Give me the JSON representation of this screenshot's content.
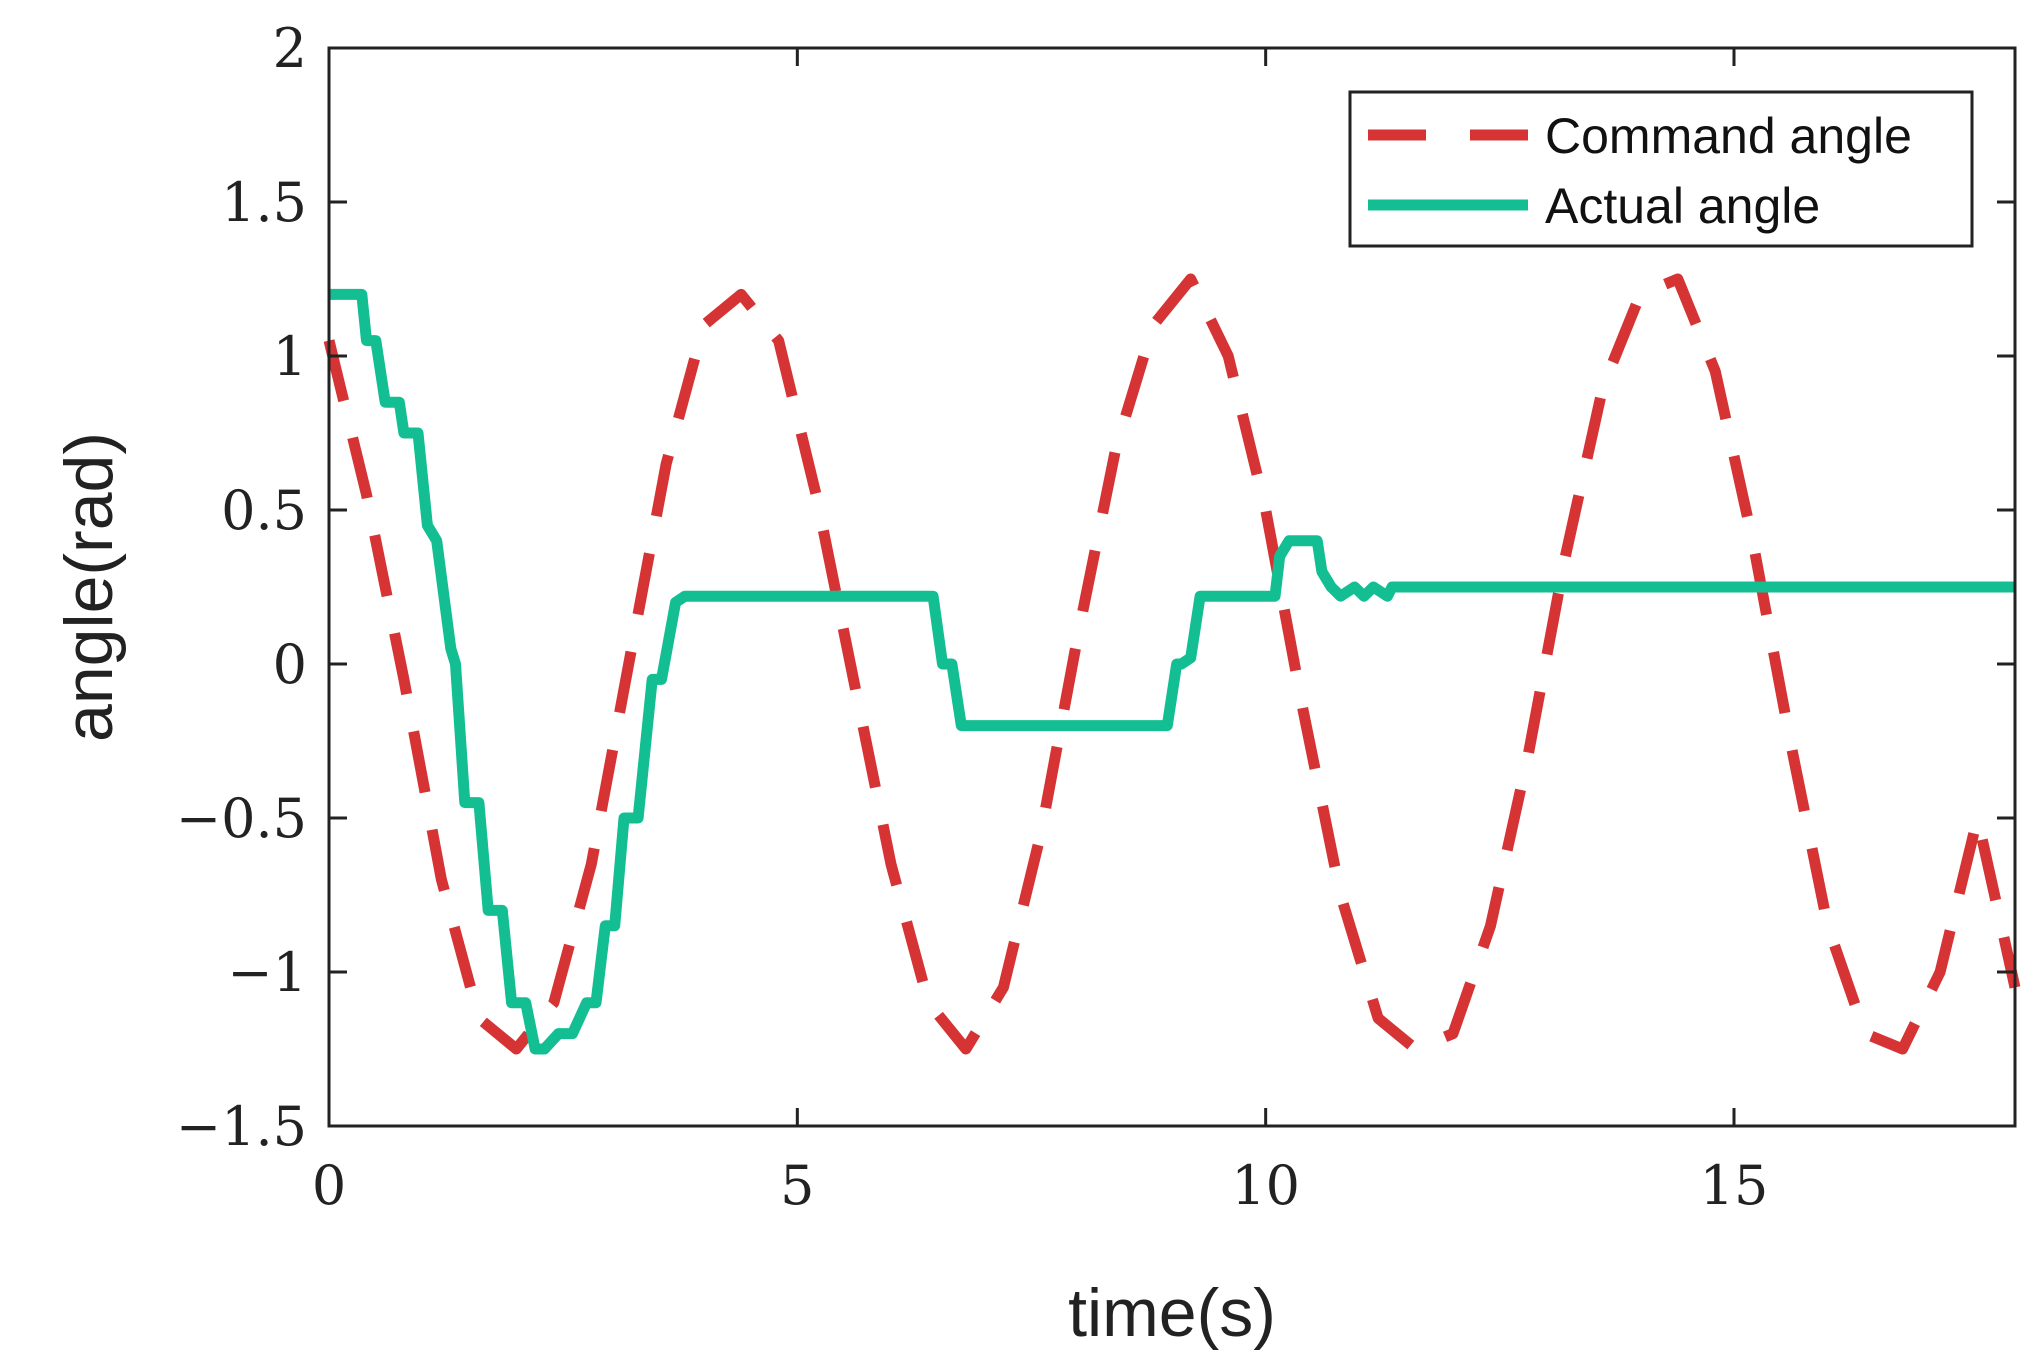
{
  "chart_data": {
    "type": "line",
    "title": "",
    "xlabel": "time(s)",
    "ylabel": "angle(rad)",
    "xlim": [
      0,
      18
    ],
    "ylim": [
      -1.5,
      2
    ],
    "xticks": [
      0,
      5,
      10,
      15
    ],
    "yticks": [
      -1.5,
      -1,
      -0.5,
      0,
      0.5,
      1,
      1.5,
      2
    ],
    "xtick_labels": [
      "0",
      "5",
      "10",
      "15"
    ],
    "ytick_labels": [
      "−1.5",
      "−1",
      "−0.5",
      "0",
      "0.5",
      "1",
      "1.5",
      "2"
    ],
    "grid": false,
    "legend_position": "top-right",
    "colors": {
      "command": "#d63434",
      "actual": "#13bf92",
      "axes": "#222222"
    },
    "series": [
      {
        "name": "Command angle",
        "style": "dashed",
        "x": [
          0,
          0.4,
          0.8,
          1.2,
          1.6,
          2.0,
          2.4,
          2.8,
          3.2,
          3.6,
          4.0,
          4.4,
          4.8,
          5.2,
          5.6,
          6.0,
          6.4,
          6.8,
          7.2,
          7.6,
          8.0,
          8.4,
          8.8,
          9.2,
          9.6,
          10.0,
          10.4,
          10.8,
          11.2,
          11.6,
          12.0,
          12.4,
          12.8,
          13.2,
          13.6,
          14.0,
          14.4,
          14.8,
          15.2,
          15.6,
          16.0,
          16.4,
          16.8,
          17.2,
          17.6,
          18.0
        ],
        "values": [
          1.05,
          0.55,
          -0.05,
          -0.7,
          -1.15,
          -1.25,
          -1.1,
          -0.65,
          0.0,
          0.65,
          1.1,
          1.2,
          1.05,
          0.55,
          -0.05,
          -0.65,
          -1.1,
          -1.25,
          -1.05,
          -0.55,
          0.1,
          0.7,
          1.1,
          1.25,
          1.0,
          0.5,
          -0.15,
          -0.75,
          -1.15,
          -1.25,
          -1.2,
          -0.85,
          -0.3,
          0.35,
          0.9,
          1.2,
          1.25,
          0.95,
          0.4,
          -0.25,
          -0.85,
          -1.2,
          -1.25,
          -1.0,
          -0.5,
          -1.05
        ]
      },
      {
        "name": "Actual angle",
        "style": "solid",
        "x": [
          0,
          0.35,
          0.4,
          0.5,
          0.6,
          0.75,
          0.8,
          0.95,
          1.05,
          1.15,
          1.3,
          1.35,
          1.45,
          1.6,
          1.7,
          1.85,
          1.95,
          2.1,
          2.2,
          2.3,
          2.45,
          2.6,
          2.75,
          2.85,
          2.95,
          3.05,
          3.15,
          3.3,
          3.45,
          3.55,
          3.7,
          3.8,
          3.95,
          4.05,
          4.2,
          4.3,
          6.45,
          6.55,
          6.65,
          6.75,
          6.9,
          7.0,
          8.95,
          9.05,
          9.1,
          9.2,
          9.3,
          9.4,
          10.1,
          10.15,
          10.25,
          10.3,
          10.55,
          10.6,
          10.7,
          10.8,
          10.95,
          11.05,
          11.15,
          11.3,
          11.35,
          18.0
        ],
        "values": [
          1.2,
          1.2,
          1.05,
          1.05,
          0.85,
          0.85,
          0.75,
          0.75,
          0.45,
          0.4,
          0.05,
          0.0,
          -0.45,
          -0.45,
          -0.8,
          -0.8,
          -1.1,
          -1.1,
          -1.25,
          -1.25,
          -1.2,
          -1.2,
          -1.1,
          -1.1,
          -0.85,
          -0.85,
          -0.5,
          -0.5,
          -0.05,
          -0.05,
          0.2,
          0.22,
          0.22,
          0.22,
          0.22,
          0.22,
          0.22,
          0.0,
          0.0,
          -0.2,
          -0.2,
          -0.2,
          -0.2,
          0.0,
          0.0,
          0.02,
          0.22,
          0.22,
          0.22,
          0.35,
          0.4,
          0.4,
          0.4,
          0.3,
          0.25,
          0.22,
          0.25,
          0.22,
          0.25,
          0.22,
          0.25,
          0.25
        ]
      }
    ]
  }
}
